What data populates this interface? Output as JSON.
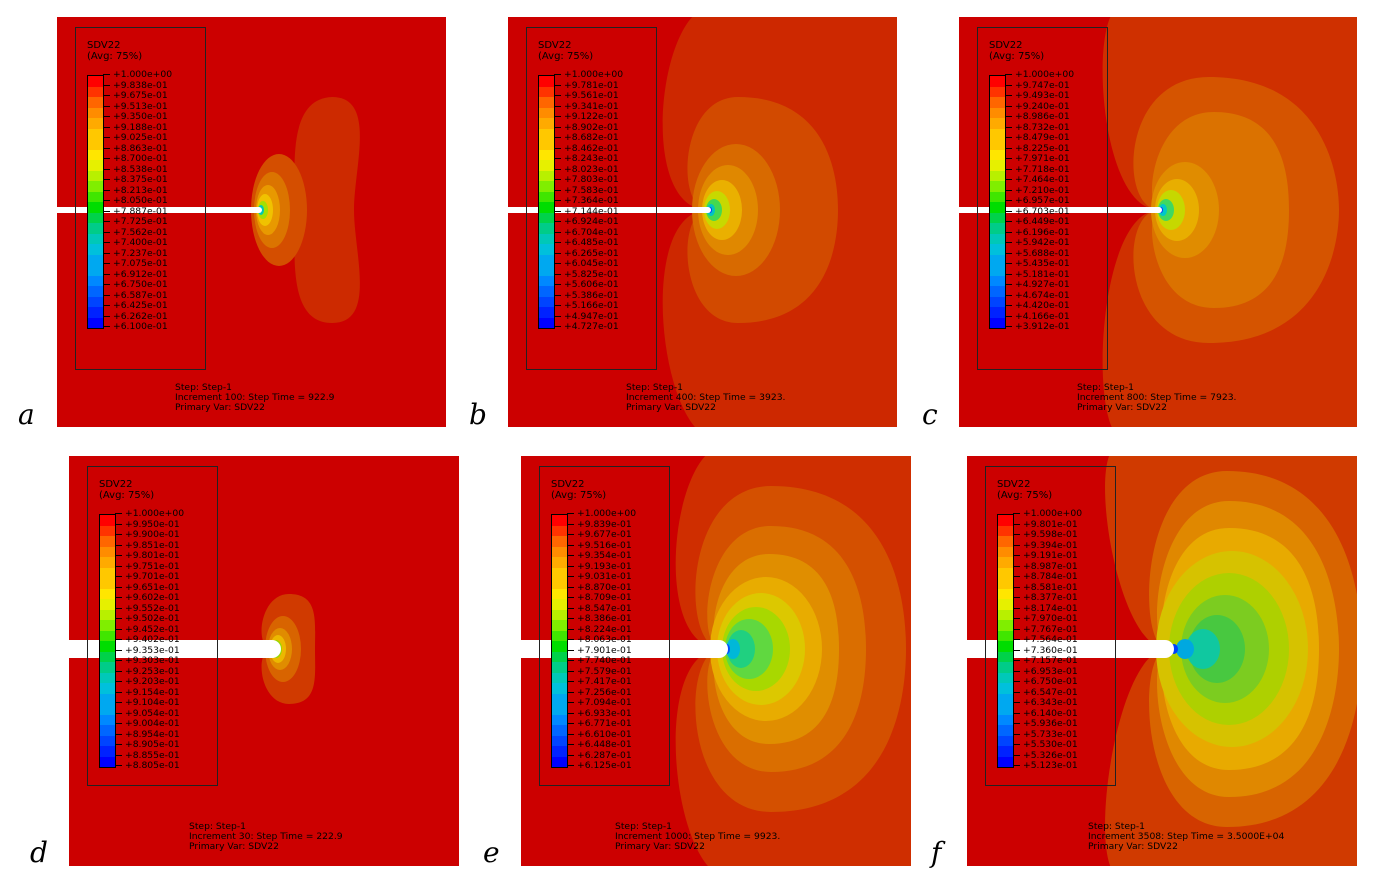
{
  "panels": [
    {
      "id": "a",
      "letter": "a",
      "title": "SDV22",
      "avg": "(Avg: 75%)",
      "labels": [
        "+1.000e+00",
        "+9.838e-01",
        "+9.675e-01",
        "+9.513e-01",
        "+9.350e-01",
        "+9.188e-01",
        "+9.025e-01",
        "+8.863e-01",
        "+8.700e-01",
        "+8.538e-01",
        "+8.375e-01",
        "+8.213e-01",
        "+8.050e-01",
        "+7.887e-01",
        "+7.725e-01",
        "+7.562e-01",
        "+7.400e-01",
        "+7.237e-01",
        "+7.075e-01",
        "+6.912e-01",
        "+6.750e-01",
        "+6.587e-01",
        "+6.425e-01",
        "+6.262e-01",
        "+6.100e-01"
      ],
      "step": "Step: Step-1",
      "increment": "Increment    100: Step Time =    922.9",
      "primary": "Primary Var: SDV22"
    },
    {
      "id": "b",
      "letter": "b",
      "title": "SDV22",
      "avg": "(Avg: 75%)",
      "labels": [
        "+1.000e+00",
        "+9.781e-01",
        "+9.561e-01",
        "+9.341e-01",
        "+9.122e-01",
        "+8.902e-01",
        "+8.682e-01",
        "+8.462e-01",
        "+8.243e-01",
        "+8.023e-01",
        "+7.803e-01",
        "+7.583e-01",
        "+7.364e-01",
        "+7.144e-01",
        "+6.924e-01",
        "+6.704e-01",
        "+6.485e-01",
        "+6.265e-01",
        "+6.045e-01",
        "+5.825e-01",
        "+5.606e-01",
        "+5.386e-01",
        "+5.166e-01",
        "+4.947e-01",
        "+4.727e-01"
      ],
      "step": "Step: Step-1",
      "increment": "Increment    400: Step Time =    3923.",
      "primary": "Primary Var: SDV22"
    },
    {
      "id": "c",
      "letter": "c",
      "title": "SDV22",
      "avg": "(Avg: 75%)",
      "labels": [
        "+1.000e+00",
        "+9.747e-01",
        "+9.493e-01",
        "+9.240e-01",
        "+8.986e-01",
        "+8.732e-01",
        "+8.479e-01",
        "+8.225e-01",
        "+7.971e-01",
        "+7.718e-01",
        "+7.464e-01",
        "+7.210e-01",
        "+6.957e-01",
        "+6.703e-01",
        "+6.449e-01",
        "+6.196e-01",
        "+5.942e-01",
        "+5.688e-01",
        "+5.435e-01",
        "+5.181e-01",
        "+4.927e-01",
        "+4.674e-01",
        "+4.420e-01",
        "+4.166e-01",
        "+3.912e-01"
      ],
      "step": "Step: Step-1",
      "increment": "Increment    800: Step Time =    7923.",
      "primary": "Primary Var: SDV22"
    },
    {
      "id": "d",
      "letter": "d",
      "title": "SDV22",
      "avg": "(Avg: 75%)",
      "labels": [
        "+1.000e+00",
        "+9.950e-01",
        "+9.900e-01",
        "+9.851e-01",
        "+9.801e-01",
        "+9.751e-01",
        "+9.701e-01",
        "+9.651e-01",
        "+9.602e-01",
        "+9.552e-01",
        "+9.502e-01",
        "+9.452e-01",
        "+9.402e-01",
        "+9.353e-01",
        "+9.303e-01",
        "+9.253e-01",
        "+9.203e-01",
        "+9.154e-01",
        "+9.104e-01",
        "+9.054e-01",
        "+9.004e-01",
        "+8.954e-01",
        "+8.905e-01",
        "+8.855e-01",
        "+8.805e-01"
      ],
      "step": "Step: Step-1",
      "increment": "Increment     30: Step Time =    222.9",
      "primary": "Primary Var: SDV22"
    },
    {
      "id": "e",
      "letter": "e",
      "title": "SDV22",
      "avg": "(Avg: 75%)",
      "labels": [
        "+1.000e+00",
        "+9.839e-01",
        "+9.677e-01",
        "+9.516e-01",
        "+9.354e-01",
        "+9.193e-01",
        "+9.031e-01",
        "+8.870e-01",
        "+8.709e-01",
        "+8.547e-01",
        "+8.386e-01",
        "+8.224e-01",
        "+8.063e-01",
        "+7.901e-01",
        "+7.740e-01",
        "+7.579e-01",
        "+7.417e-01",
        "+7.256e-01",
        "+7.094e-01",
        "+6.933e-01",
        "+6.771e-01",
        "+6.610e-01",
        "+6.448e-01",
        "+6.287e-01",
        "+6.125e-01"
      ],
      "step": "Step: Step-1",
      "increment": "Increment   1000: Step Time =    9923.",
      "primary": "Primary Var: SDV22"
    },
    {
      "id": "f",
      "letter": "f",
      "title": "SDV22",
      "avg": "(Avg: 75%)",
      "labels": [
        "+1.000e+00",
        "+9.801e-01",
        "+9.598e-01",
        "+9.394e-01",
        "+9.191e-01",
        "+8.987e-01",
        "+8.784e-01",
        "+8.581e-01",
        "+8.377e-01",
        "+8.174e-01",
        "+7.970e-01",
        "+7.767e-01",
        "+7.564e-01",
        "+7.360e-01",
        "+7.157e-01",
        "+6.953e-01",
        "+6.750e-01",
        "+6.547e-01",
        "+6.343e-01",
        "+6.140e-01",
        "+5.936e-01",
        "+5.733e-01",
        "+5.530e-01",
        "+5.326e-01",
        "+5.123e-01"
      ],
      "step": "Step: Step-1",
      "increment": "Increment   3508: Step Time =    3.5000E+04",
      "primary": "Primary Var: SDV22"
    }
  ]
}
